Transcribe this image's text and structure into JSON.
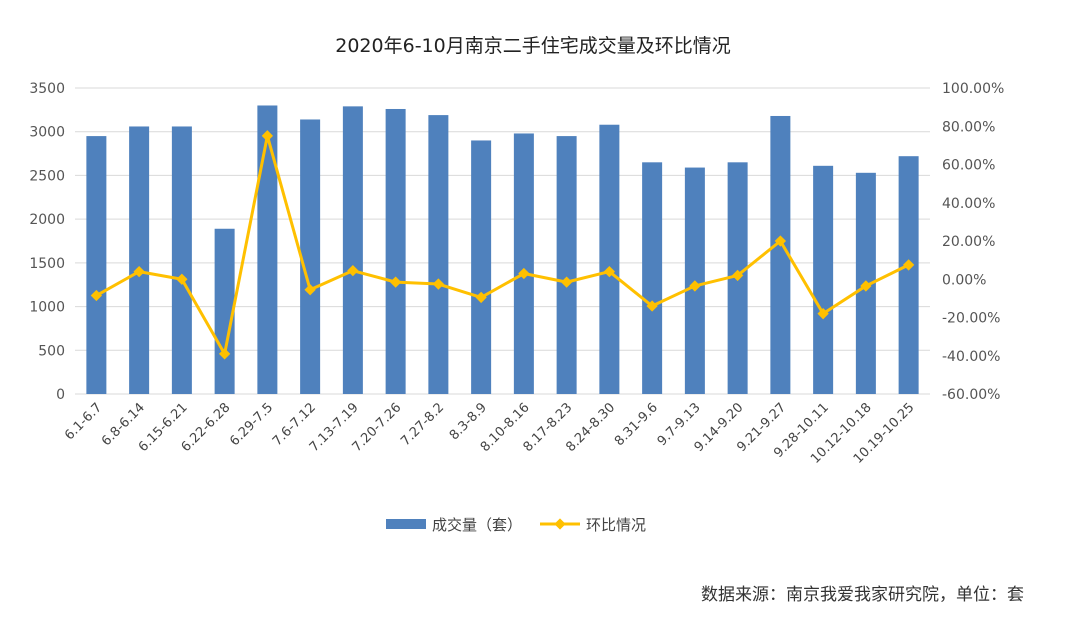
{
  "chart_data": {
    "type": "bar",
    "title": "2020年6-10月南京二手住宅成交量及环比情况",
    "categories": [
      "6.1-6.7",
      "6.8-6.14",
      "6.15-6.21",
      "6.22-6.28",
      "6.29-7.5",
      "7.6-7.12",
      "7.13-7.19",
      "7.20-7.26",
      "7.27-8.2",
      "8.3-8.9",
      "8.10-8.16",
      "8.17-8.23",
      "8.24-8.30",
      "8.31-9.6",
      "9.7-9.13",
      "9.14-9.20",
      "9.21-9.27",
      "9.28-10.11",
      "10.12-10.18",
      "10.19-10.25"
    ],
    "series": [
      {
        "name": "成交量（套）",
        "type": "bar",
        "axis": "left",
        "color": "#4F81BD",
        "values": [
          2950,
          3060,
          3060,
          1890,
          3300,
          3140,
          3290,
          3260,
          3190,
          2900,
          2980,
          2950,
          3080,
          2650,
          2590,
          2650,
          3180,
          2610,
          2530,
          2720
        ]
      },
      {
        "name": "环比情况",
        "type": "line",
        "axis": "right",
        "color": "#FFC000",
        "values": [
          -8.5,
          4.0,
          0.0,
          -39.0,
          75.0,
          -5.5,
          4.5,
          -1.5,
          -2.5,
          -9.5,
          3.0,
          -1.5,
          4.0,
          -14.0,
          -3.5,
          2.0,
          20.0,
          -18.0,
          -3.5,
          7.5
        ]
      }
    ],
    "y_left": {
      "min": 0,
      "max": 3500,
      "ticks": [
        0,
        500,
        1000,
        1500,
        2000,
        2500,
        3000,
        3500
      ]
    },
    "y_right": {
      "min": -60,
      "max": 100,
      "ticks": [
        "-60.00%",
        "-40.00%",
        "-20.00%",
        "0.00%",
        "20.00%",
        "40.00%",
        "60.00%",
        "80.00%",
        "100.00%"
      ]
    },
    "grid": true,
    "legend_position": "bottom"
  },
  "source_note": "数据来源：南京我爱我家研究院，单位：套"
}
